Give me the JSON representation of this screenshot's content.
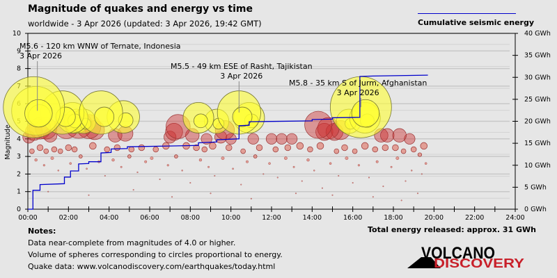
{
  "header": {
    "title": "Magnitude of quakes and energy vs time",
    "subtitle": "worldwide -  3 Apr 2026 (updated: 3 Apr 2026, 19:42 GMT)",
    "legend_label": "Cumulative seismic energy"
  },
  "notes": {
    "heading": "Notes:",
    "lines": [
      "Data near-complete from magnitudes of 4.0 or higher.",
      "Volume of spheres corresponding to circles proportional to energy.",
      "Quake data: www.volcanodiscovery.com/earthquakes/today.html"
    ]
  },
  "total_energy": "Total energy released: approx. 31 GWh",
  "logo": {
    "line1": "VOLCANO",
    "line2": "DISCOVERY"
  },
  "colors": {
    "energy_line": "#0000cc",
    "large_quake": "#ffff33",
    "quake": "#cc2222",
    "logo_red": "#c8202a"
  },
  "chart_data": {
    "type": "scatter",
    "title": "Magnitude of quakes and energy vs time",
    "ylabel": "Magnitude",
    "ylim": [
      0,
      10
    ],
    "y2lim": [
      0,
      40
    ],
    "y2unit": "GWh",
    "xlim": [
      0,
      24
    ],
    "x_ticks": [
      "00:00",
      "02:00",
      "04:00",
      "06:00",
      "08:00",
      "10:00",
      "12:00",
      "14:00",
      "16:00",
      "18:00",
      "20:00",
      "22:00",
      "24:00"
    ],
    "y_ticks": [
      "0",
      "1",
      "2",
      "3",
      "4",
      "5",
      "6",
      "7",
      "8",
      "9",
      "10"
    ],
    "y2_ticks": [
      "0 GWh",
      "5 GWh",
      "10 GWh",
      "15 GWh",
      "20 GWh",
      "25 GWh",
      "30 GWh",
      "35 GWh",
      "40 GWh"
    ],
    "grid": true,
    "legend": "top-right",
    "annotations": [
      {
        "time": 0.4,
        "mag": 5.6,
        "text": "M5.6 - 120 km WNW of Ternate, Indonesia",
        "date": "3 Apr 2026"
      },
      {
        "time": 10.4,
        "mag": 5.5,
        "text": "M5.5 - 49 km ESE of Rasht, Tajikistan",
        "date": "3 Apr 2026"
      },
      {
        "time": 16.4,
        "mag": 5.8,
        "text": "M5.8 - 35 km S of Jurm, Afghanistan",
        "date": "3 Apr 2026"
      }
    ],
    "quakes_time_mag": [
      [
        0.3,
        5.8
      ],
      [
        0.4,
        5.6
      ],
      [
        1.7,
        5.5
      ],
      [
        2.2,
        5.2
      ],
      [
        2.4,
        5.0
      ],
      [
        2.75,
        5.0
      ],
      [
        3.6,
        5.5
      ],
      [
        4.7,
        5.25
      ],
      [
        8.4,
        5.2
      ],
      [
        9.3,
        5.0
      ],
      [
        10.4,
        5.5
      ],
      [
        10.9,
        5.2
      ],
      [
        16.4,
        5.8
      ],
      [
        0.05,
        4.1
      ],
      [
        0.3,
        4.4
      ],
      [
        0.6,
        4.6
      ],
      [
        0.9,
        4.6
      ],
      [
        1.1,
        4.2
      ],
      [
        1.9,
        4.7
      ],
      [
        2.5,
        4.8
      ],
      [
        3.0,
        4.7
      ],
      [
        3.3,
        4.5
      ],
      [
        4.3,
        4.2
      ],
      [
        4.8,
        4.3
      ],
      [
        7.0,
        4.1
      ],
      [
        7.2,
        4.4
      ],
      [
        7.4,
        4.7
      ],
      [
        8.1,
        4.2
      ],
      [
        8.8,
        4.0
      ],
      [
        9.5,
        4.1
      ],
      [
        9.7,
        4.5
      ],
      [
        10.0,
        4.0
      ],
      [
        11.1,
        4.0
      ],
      [
        12.0,
        4.0
      ],
      [
        12.5,
        4.0
      ],
      [
        13.0,
        4.0
      ],
      [
        14.3,
        4.8
      ],
      [
        14.6,
        4.4
      ],
      [
        14.8,
        4.6
      ],
      [
        15.1,
        4.4
      ],
      [
        15.4,
        4.5
      ],
      [
        15.8,
        5.0
      ],
      [
        16.6,
        5.2
      ],
      [
        17.4,
        4.2
      ],
      [
        17.7,
        4.2
      ],
      [
        18.3,
        4.2
      ],
      [
        18.8,
        4.0
      ],
      [
        19.5,
        3.6
      ],
      [
        0.2,
        3.3
      ],
      [
        0.6,
        3.5
      ],
      [
        0.9,
        3.3
      ],
      [
        1.3,
        3.4
      ],
      [
        1.6,
        3.3
      ],
      [
        2.0,
        3.5
      ],
      [
        2.3,
        3.4
      ],
      [
        3.2,
        3.6
      ],
      [
        3.9,
        3.4
      ],
      [
        4.4,
        3.5
      ],
      [
        5.1,
        3.4
      ],
      [
        5.6,
        3.5
      ],
      [
        6.3,
        3.4
      ],
      [
        6.8,
        3.6
      ],
      [
        7.8,
        3.6
      ],
      [
        8.3,
        3.5
      ],
      [
        8.7,
        3.4
      ],
      [
        9.1,
        3.6
      ],
      [
        9.9,
        3.5
      ],
      [
        10.6,
        3.3
      ],
      [
        11.4,
        3.5
      ],
      [
        12.2,
        3.4
      ],
      [
        12.8,
        3.5
      ],
      [
        13.4,
        3.6
      ],
      [
        13.9,
        3.4
      ],
      [
        14.4,
        3.6
      ],
      [
        15.2,
        3.3
      ],
      [
        15.6,
        3.5
      ],
      [
        16.1,
        3.3
      ],
      [
        16.6,
        3.6
      ],
      [
        17.1,
        3.4
      ],
      [
        17.6,
        3.5
      ],
      [
        18.1,
        3.5
      ],
      [
        18.5,
        3.3
      ],
      [
        19.0,
        3.4
      ],
      [
        19.3,
        3.1
      ],
      [
        0.4,
        2.8
      ],
      [
        0.8,
        2.5
      ],
      [
        1.2,
        2.9
      ],
      [
        1.5,
        2.2
      ],
      [
        2.1,
        2.6
      ],
      [
        2.6,
        3.0
      ],
      [
        2.9,
        2.3
      ],
      [
        3.5,
        2.7
      ],
      [
        3.8,
        1.9
      ],
      [
        4.2,
        2.8
      ],
      [
        4.6,
        2.4
      ],
      [
        5.0,
        3.0
      ],
      [
        5.4,
        2.1
      ],
      [
        5.8,
        2.7
      ],
      [
        6.1,
        2.9
      ],
      [
        6.5,
        1.7
      ],
      [
        6.9,
        2.5
      ],
      [
        7.3,
        3.0
      ],
      [
        7.6,
        2.2
      ],
      [
        8.0,
        1.5
      ],
      [
        8.5,
        2.8
      ],
      [
        8.9,
        2.4
      ],
      [
        9.2,
        1.9
      ],
      [
        9.6,
        2.9
      ],
      [
        10.1,
        2.3
      ],
      [
        10.5,
        1.4
      ],
      [
        10.8,
        2.7
      ],
      [
        11.2,
        3.0
      ],
      [
        11.6,
        2.0
      ],
      [
        11.9,
        2.6
      ],
      [
        12.3,
        1.8
      ],
      [
        12.7,
        2.9
      ],
      [
        13.1,
        2.4
      ],
      [
        13.5,
        1.6
      ],
      [
        13.8,
        2.8
      ],
      [
        14.1,
        2.2
      ],
      [
        14.5,
        1.2
      ],
      [
        14.9,
        2.6
      ],
      [
        15.3,
        1.9
      ],
      [
        15.7,
        2.9
      ],
      [
        16.0,
        1.5
      ],
      [
        16.3,
        2.5
      ],
      [
        16.8,
        1.8
      ],
      [
        17.2,
        2.7
      ],
      [
        17.5,
        1.3
      ],
      [
        17.9,
        2.4
      ],
      [
        18.2,
        2.9
      ],
      [
        18.6,
        1.6
      ],
      [
        18.9,
        2.2
      ],
      [
        19.2,
        0.9
      ],
      [
        19.4,
        2.0
      ],
      [
        19.6,
        2.6
      ],
      [
        1.0,
        1.0
      ],
      [
        3.0,
        0.8
      ],
      [
        5.2,
        1.1
      ],
      [
        7.1,
        0.7
      ],
      [
        9.0,
        0.9
      ],
      [
        11.0,
        0.6
      ],
      [
        13.2,
        0.9
      ],
      [
        15.0,
        0.8
      ],
      [
        17.0,
        0.7
      ],
      [
        18.4,
        0.5
      ]
    ],
    "energy_steps_time_gwh": [
      [
        0.0,
        0.0
      ],
      [
        0.25,
        0.0
      ],
      [
        0.25,
        4.3
      ],
      [
        0.6,
        4.3
      ],
      [
        0.6,
        5.6
      ],
      [
        1.8,
        5.8
      ],
      [
        1.8,
        7.3
      ],
      [
        2.1,
        7.3
      ],
      [
        2.1,
        8.7
      ],
      [
        2.5,
        8.7
      ],
      [
        2.5,
        10.3
      ],
      [
        3.0,
        10.4
      ],
      [
        3.0,
        10.8
      ],
      [
        3.6,
        10.8
      ],
      [
        3.6,
        12.8
      ],
      [
        4.1,
        12.9
      ],
      [
        4.1,
        13.7
      ],
      [
        4.9,
        13.8
      ],
      [
        4.9,
        14.2
      ],
      [
        8.4,
        14.5
      ],
      [
        8.4,
        15.1
      ],
      [
        9.3,
        15.3
      ],
      [
        9.3,
        15.8
      ],
      [
        10.4,
        16.0
      ],
      [
        10.4,
        19.0
      ],
      [
        10.9,
        19.1
      ],
      [
        10.9,
        19.9
      ],
      [
        14.0,
        20.1
      ],
      [
        14.0,
        20.4
      ],
      [
        15.0,
        20.5
      ],
      [
        15.0,
        20.8
      ],
      [
        16.35,
        20.9
      ],
      [
        16.35,
        30.2
      ],
      [
        17.0,
        30.3
      ],
      [
        19.7,
        30.5
      ]
    ]
  }
}
